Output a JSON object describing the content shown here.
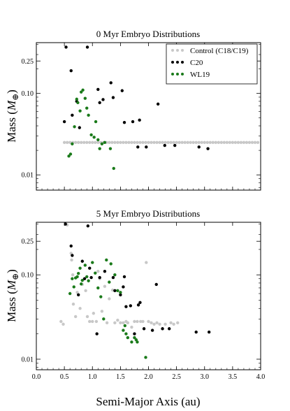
{
  "figure": {
    "xlabel": "Semi-Major Axis (au)",
    "ylabel_main": "Mass (",
    "ylabel_symbol": "M",
    "ylabel_sub": "⊕",
    "ylabel_close": ")"
  },
  "legend": {
    "placement": "top-right",
    "entries": [
      {
        "label": "Control (C18/C19)",
        "color": "#c8c8c8"
      },
      {
        "label": "C20",
        "color": "#000000"
      },
      {
        "label": "WL19",
        "color": "#1a7a1a"
      }
    ]
  },
  "chart_data": [
    {
      "type": "scatter",
      "title": "0 Myr Embryo Distributions",
      "xlabel": "Semi-Major Axis (au)",
      "ylabel": "Mass (M⊕)",
      "xlim": [
        0.0,
        4.0
      ],
      "ylim": [
        0.0065,
        0.42
      ],
      "yscale": "log",
      "yticks": [
        0.01,
        0.1,
        0.25
      ],
      "ytick_labels": [
        "0.01",
        "0.10",
        "0.25"
      ],
      "xticks": [
        0.0,
        0.5,
        1.0,
        1.5,
        2.0,
        2.5,
        3.0,
        3.5,
        4.0
      ],
      "xtick_labels": [
        "0.0",
        "0.5",
        "1.0",
        "1.5",
        "2.0",
        "2.5",
        "3.0",
        "3.5",
        "4.0"
      ],
      "grid": false,
      "series": [
        {
          "name": "Control (C18/C19)",
          "color": "#c8c8c8",
          "points": [
            [
              0.5,
              0.025
            ],
            [
              0.55,
              0.025
            ],
            [
              0.6,
              0.025
            ],
            [
              0.65,
              0.025
            ],
            [
              0.7,
              0.025
            ],
            [
              0.75,
              0.025
            ],
            [
              0.8,
              0.025
            ],
            [
              0.85,
              0.025
            ],
            [
              0.9,
              0.025
            ],
            [
              0.95,
              0.025
            ],
            [
              1.0,
              0.025
            ],
            [
              1.05,
              0.025
            ],
            [
              1.1,
              0.025
            ],
            [
              1.15,
              0.025
            ],
            [
              1.2,
              0.025
            ],
            [
              1.25,
              0.025
            ],
            [
              1.3,
              0.025
            ],
            [
              1.35,
              0.025
            ],
            [
              1.4,
              0.025
            ],
            [
              1.45,
              0.025
            ],
            [
              1.5,
              0.025
            ],
            [
              1.55,
              0.025
            ],
            [
              1.6,
              0.025
            ],
            [
              1.65,
              0.025
            ],
            [
              1.7,
              0.025
            ],
            [
              1.75,
              0.025
            ],
            [
              1.8,
              0.025
            ],
            [
              1.85,
              0.025
            ],
            [
              1.9,
              0.025
            ],
            [
              1.95,
              0.025
            ],
            [
              2.0,
              0.025
            ],
            [
              2.05,
              0.025
            ],
            [
              2.1,
              0.025
            ],
            [
              2.15,
              0.025
            ],
            [
              2.2,
              0.025
            ],
            [
              2.25,
              0.025
            ],
            [
              2.3,
              0.025
            ],
            [
              2.35,
              0.025
            ],
            [
              2.4,
              0.025
            ],
            [
              2.45,
              0.025
            ],
            [
              2.5,
              0.025
            ],
            [
              2.55,
              0.025
            ],
            [
              2.6,
              0.025
            ],
            [
              2.65,
              0.025
            ],
            [
              2.7,
              0.025
            ],
            [
              2.75,
              0.025
            ],
            [
              2.8,
              0.025
            ],
            [
              2.85,
              0.025
            ],
            [
              2.9,
              0.025
            ],
            [
              2.95,
              0.025
            ],
            [
              3.0,
              0.025
            ],
            [
              3.05,
              0.025
            ],
            [
              3.1,
              0.025
            ],
            [
              3.15,
              0.025
            ],
            [
              3.2,
              0.025
            ],
            [
              3.25,
              0.025
            ],
            [
              3.3,
              0.025
            ],
            [
              3.35,
              0.025
            ],
            [
              3.4,
              0.025
            ],
            [
              3.45,
              0.025
            ],
            [
              3.5,
              0.025
            ],
            [
              3.55,
              0.025
            ],
            [
              3.6,
              0.025
            ],
            [
              3.65,
              0.025
            ],
            [
              3.7,
              0.025
            ],
            [
              3.75,
              0.025
            ],
            [
              3.8,
              0.025
            ],
            [
              3.85,
              0.025
            ],
            [
              3.9,
              0.025
            ],
            [
              3.95,
              0.025
            ]
          ]
        },
        {
          "name": "C20",
          "color": "#000000",
          "points": [
            [
              0.53,
              0.37
            ],
            [
              0.91,
              0.37
            ],
            [
              0.62,
              0.19
            ],
            [
              0.5,
              0.045
            ],
            [
              0.64,
              0.054
            ],
            [
              0.72,
              0.08
            ],
            [
              0.77,
              0.038
            ],
            [
              1.1,
              0.112
            ],
            [
              1.13,
              0.077
            ],
            [
              1.19,
              0.084
            ],
            [
              1.33,
              0.135
            ],
            [
              1.37,
              0.089
            ],
            [
              1.53,
              0.108
            ],
            [
              1.57,
              0.044
            ],
            [
              1.72,
              0.045
            ],
            [
              1.84,
              0.047
            ],
            [
              1.81,
              0.022
            ],
            [
              1.96,
              0.022
            ],
            [
              2.17,
              0.074
            ],
            [
              2.29,
              0.023
            ],
            [
              2.47,
              0.023
            ],
            [
              2.9,
              0.022
            ],
            [
              3.06,
              0.021
            ]
          ]
        },
        {
          "name": "WL19",
          "color": "#1a7a1a",
          "points": [
            [
              0.58,
              0.017
            ],
            [
              0.61,
              0.018
            ],
            [
              0.64,
              0.024
            ],
            [
              0.68,
              0.039
            ],
            [
              0.72,
              0.085
            ],
            [
              0.74,
              0.077
            ],
            [
              0.78,
              0.061
            ],
            [
              0.8,
              0.104
            ],
            [
              0.83,
              0.11
            ],
            [
              0.87,
              0.087
            ],
            [
              0.9,
              0.066
            ],
            [
              0.93,
              0.054
            ],
            [
              0.98,
              0.031
            ],
            [
              1.03,
              0.029
            ],
            [
              1.06,
              0.045
            ],
            [
              1.1,
              0.027
            ],
            [
              1.13,
              0.021
            ],
            [
              1.17,
              0.024
            ],
            [
              1.22,
              0.025
            ],
            [
              1.32,
              0.021
            ],
            [
              1.38,
              0.012
            ]
          ]
        }
      ]
    },
    {
      "type": "scatter",
      "title": "5 Myr Embryo Distributions",
      "xlabel": "Semi-Major Axis (au)",
      "ylabel": "Mass (M⊕)",
      "xlim": [
        0.0,
        4.0
      ],
      "ylim": [
        0.0075,
        0.42
      ],
      "yscale": "log",
      "yticks": [
        0.01,
        0.1,
        0.25
      ],
      "ytick_labels": [
        "0.01",
        "0.10",
        "0.25"
      ],
      "xticks": [
        0.0,
        0.5,
        1.0,
        1.5,
        2.0,
        2.5,
        3.0,
        3.5,
        4.0
      ],
      "xtick_labels": [
        "0.0",
        "0.5",
        "1.0",
        "1.5",
        "2.0",
        "2.5",
        "3.0",
        "3.5",
        "4.0"
      ],
      "grid": false,
      "series": [
        {
          "name": "Control (C18/C19)",
          "color": "#c8c8c8",
          "points": [
            [
              0.44,
              0.028
            ],
            [
              0.48,
              0.026
            ],
            [
              0.55,
              0.39
            ],
            [
              0.62,
              0.18
            ],
            [
              0.63,
              0.15
            ],
            [
              0.65,
              0.1
            ],
            [
              0.66,
              0.045
            ],
            [
              0.7,
              0.032
            ],
            [
              0.73,
              0.062
            ],
            [
              0.78,
              0.04
            ],
            [
              0.82,
              0.077
            ],
            [
              0.88,
              0.065
            ],
            [
              0.91,
              0.032
            ],
            [
              0.95,
              0.028
            ],
            [
              1.0,
              0.028
            ],
            [
              1.02,
              0.035
            ],
            [
              1.07,
              0.028
            ],
            [
              1.1,
              0.11
            ],
            [
              1.13,
              0.09
            ],
            [
              1.17,
              0.037
            ],
            [
              1.22,
              0.073
            ],
            [
              1.26,
              0.027
            ],
            [
              1.3,
              0.052
            ],
            [
              1.36,
              0.066
            ],
            [
              1.4,
              0.027
            ],
            [
              1.45,
              0.029
            ],
            [
              1.5,
              0.027
            ],
            [
              1.55,
              0.027
            ],
            [
              1.6,
              0.028
            ],
            [
              1.63,
              0.027
            ],
            [
              1.7,
              0.024
            ],
            [
              1.75,
              0.028
            ],
            [
              1.8,
              0.028
            ],
            [
              1.86,
              0.028
            ],
            [
              1.9,
              0.028
            ],
            [
              1.96,
              0.14
            ],
            [
              2.0,
              0.028
            ],
            [
              2.05,
              0.027
            ],
            [
              2.1,
              0.026
            ],
            [
              2.15,
              0.027
            ],
            [
              2.2,
              0.026
            ],
            [
              2.3,
              0.026
            ],
            [
              2.4,
              0.027
            ],
            [
              2.45,
              0.026
            ],
            [
              2.52,
              0.027
            ]
          ]
        },
        {
          "name": "C20",
          "color": "#000000",
          "points": [
            [
              0.52,
              0.4
            ],
            [
              0.92,
              0.38
            ],
            [
              0.62,
              0.22
            ],
            [
              0.64,
              0.17
            ],
            [
              0.75,
              0.058
            ],
            [
              0.82,
              0.145
            ],
            [
              0.86,
              0.09
            ],
            [
              0.95,
              0.12
            ],
            [
              0.98,
              0.093
            ],
            [
              1.08,
              0.02
            ],
            [
              1.13,
              0.093
            ],
            [
              1.22,
              0.11
            ],
            [
              1.37,
              0.093
            ],
            [
              1.4,
              0.065
            ],
            [
              1.5,
              0.058
            ],
            [
              1.55,
              0.072
            ],
            [
              1.57,
              0.095
            ],
            [
              1.6,
              0.042
            ],
            [
              1.68,
              0.043
            ],
            [
              1.75,
              0.02
            ],
            [
              1.82,
              0.044
            ],
            [
              1.85,
              0.047
            ],
            [
              1.92,
              0.023
            ],
            [
              2.07,
              0.022
            ],
            [
              2.14,
              0.077
            ],
            [
              2.25,
              0.023
            ],
            [
              2.37,
              0.023
            ],
            [
              2.85,
              0.021
            ],
            [
              3.08,
              0.021
            ]
          ]
        },
        {
          "name": "WL19",
          "color": "#1a7a1a",
          "points": [
            [
              0.6,
              0.06
            ],
            [
              0.64,
              0.09
            ],
            [
              0.67,
              0.072
            ],
            [
              0.7,
              0.092
            ],
            [
              0.73,
              0.095
            ],
            [
              0.75,
              0.104
            ],
            [
              0.78,
              0.12
            ],
            [
              0.8,
              0.078
            ],
            [
              0.82,
              0.086
            ],
            [
              0.87,
              0.13
            ],
            [
              0.9,
              0.095
            ],
            [
              0.93,
              0.085
            ],
            [
              1.0,
              0.14
            ],
            [
              1.05,
              0.105
            ],
            [
              1.1,
              0.07
            ],
            [
              1.15,
              0.055
            ],
            [
              1.2,
              0.03
            ],
            [
              1.25,
              0.15
            ],
            [
              1.3,
              0.082
            ],
            [
              1.33,
              0.135
            ],
            [
              1.4,
              0.1
            ],
            [
              1.45,
              0.065
            ],
            [
              1.5,
              0.062
            ],
            [
              1.55,
              0.022
            ],
            [
              1.58,
              0.025
            ],
            [
              1.6,
              0.02
            ],
            [
              1.63,
              0.018
            ],
            [
              1.7,
              0.016
            ],
            [
              1.75,
              0.018
            ],
            [
              1.78,
              0.017
            ],
            [
              1.8,
              0.016
            ],
            [
              1.95,
              0.0105
            ]
          ]
        }
      ]
    }
  ]
}
